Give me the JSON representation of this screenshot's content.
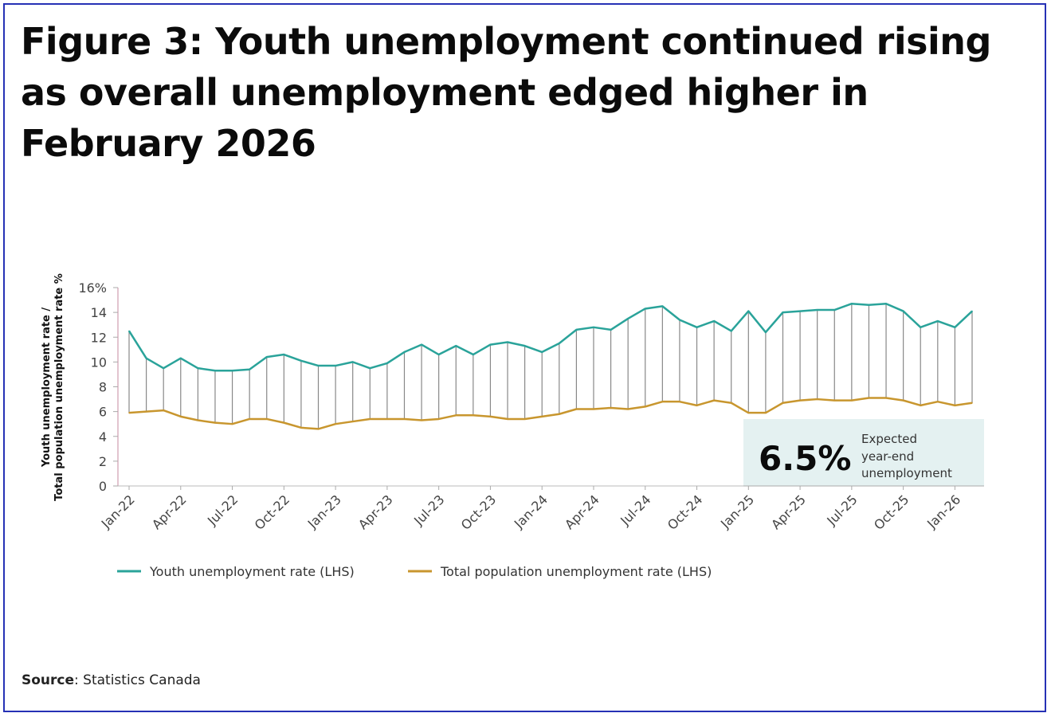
{
  "title": "Figure 3: Youth unemployment continued rising as overall unemployment edged higher in February 2026",
  "source_label": "Source",
  "source_text": ": Statistics Canada",
  "colors": {
    "youth": "#2aa39a",
    "total": "#c8962e",
    "axis": "#d8b0bf",
    "drop": "#888888",
    "box": "#e4f1f1",
    "frame": "#2631b5"
  },
  "chart_data": {
    "type": "line",
    "ylabel_line1": "Youth unemployment rate /",
    "ylabel_line2": "Total population unemployment rate %",
    "ylim": [
      0,
      16
    ],
    "yticks": [
      "0",
      "2",
      "4",
      "6",
      "8",
      "10",
      "12",
      "14",
      "16%"
    ],
    "xtick_labels": [
      "Jan-22",
      "Apr-22",
      "Jul-22",
      "Oct-22",
      "Jan-23",
      "Apr-23",
      "Jul-23",
      "Oct-23",
      "Jan-24",
      "Apr-24",
      "Jul-24",
      "Oct-24",
      "Jan-25",
      "Apr-25",
      "Jul-25",
      "Oct-25",
      "Jan-26"
    ],
    "x_start": "Jan-22",
    "x_end": "Feb-26",
    "series": [
      {
        "name": "Youth unemployment rate (LHS)",
        "values": [
          12.5,
          10.3,
          9.5,
          10.3,
          9.5,
          9.3,
          9.3,
          9.4,
          10.4,
          10.6,
          10.1,
          9.7,
          9.7,
          10.0,
          9.5,
          9.9,
          10.8,
          11.4,
          10.6,
          11.3,
          10.6,
          11.4,
          11.6,
          11.3,
          10.8,
          11.5,
          12.6,
          12.8,
          12.6,
          13.5,
          14.3,
          14.5,
          13.4,
          12.8,
          13.3,
          12.5,
          14.1,
          12.4,
          14.0,
          14.1,
          14.2,
          14.2,
          14.7,
          14.6,
          14.7,
          14.1,
          12.8,
          13.3,
          12.8,
          14.1
        ]
      },
      {
        "name": "Total population unemployment rate (LHS)",
        "values": [
          5.9,
          6.0,
          6.1,
          5.6,
          5.3,
          5.1,
          5.0,
          5.4,
          5.4,
          5.1,
          4.7,
          4.6,
          5.0,
          5.2,
          5.4,
          5.4,
          5.4,
          5.3,
          5.4,
          5.7,
          5.7,
          5.6,
          5.4,
          5.4,
          5.6,
          5.8,
          6.2,
          6.2,
          6.3,
          6.2,
          6.4,
          6.8,
          6.8,
          6.5,
          6.9,
          6.7,
          5.9,
          5.9,
          6.7,
          6.9,
          7.0,
          6.9,
          6.9,
          7.1,
          7.1,
          6.9,
          6.5,
          6.8,
          6.5,
          6.7
        ]
      }
    ],
    "legend_position": "bottom-left",
    "annotation": {
      "value": "6.5%",
      "line1": "Expected",
      "line2": "year-end",
      "line3": "unemployment"
    }
  }
}
